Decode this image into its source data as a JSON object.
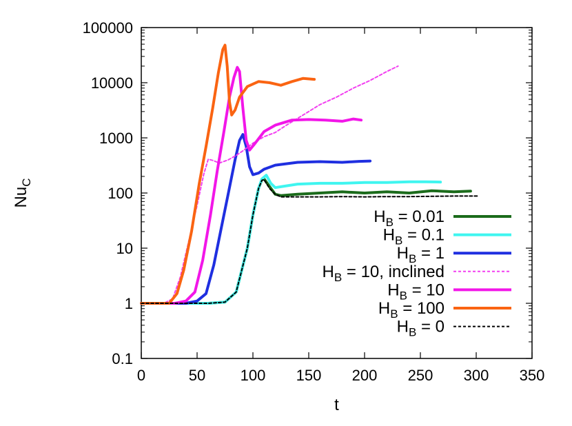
{
  "chart_data": {
    "type": "line",
    "xlabel": "t",
    "ylabel": {
      "main": "Nu",
      "sub": "C"
    },
    "xlim": [
      0,
      350
    ],
    "ylim": [
      0.1,
      100000
    ],
    "y_scale": "log",
    "grid": false,
    "legend_position": "right",
    "xticks": [
      0,
      50,
      100,
      150,
      200,
      250,
      300,
      350
    ],
    "yticks": [
      0.1,
      1,
      10,
      100,
      1000,
      10000,
      100000
    ],
    "ytick_labels": [
      "0.1",
      "1",
      "10",
      "100",
      "1000",
      "10000",
      "100000"
    ],
    "series": [
      {
        "name": "H_B = 0.01",
        "label": {
          "main": "H",
          "sub": "B",
          "rest": " = 0.01"
        },
        "color": "#1b6b1b",
        "dash": false,
        "points": [
          [
            0,
            1
          ],
          [
            60,
            1
          ],
          [
            75,
            1.05
          ],
          [
            85,
            1.6
          ],
          [
            95,
            10
          ],
          [
            100,
            40
          ],
          [
            105,
            120
          ],
          [
            108,
            175
          ],
          [
            110,
            180
          ],
          [
            115,
            130
          ],
          [
            120,
            95
          ],
          [
            125,
            90
          ],
          [
            140,
            95
          ],
          [
            160,
            100
          ],
          [
            180,
            105
          ],
          [
            200,
            100
          ],
          [
            220,
            105
          ],
          [
            240,
            100
          ],
          [
            260,
            110
          ],
          [
            280,
            105
          ],
          [
            295,
            108
          ]
        ]
      },
      {
        "name": "H_B = 0.1",
        "label": {
          "main": "H",
          "sub": "B",
          "rest": " = 0.1"
        },
        "color": "#3ff5f0",
        "dash": false,
        "points": [
          [
            0,
            1
          ],
          [
            60,
            1
          ],
          [
            75,
            1.05
          ],
          [
            85,
            1.6
          ],
          [
            95,
            10
          ],
          [
            100,
            40
          ],
          [
            105,
            120
          ],
          [
            108,
            180
          ],
          [
            112,
            210
          ],
          [
            116,
            150
          ],
          [
            120,
            125
          ],
          [
            125,
            130
          ],
          [
            140,
            145
          ],
          [
            160,
            150
          ],
          [
            180,
            150
          ],
          [
            200,
            155
          ],
          [
            220,
            155
          ],
          [
            240,
            160
          ],
          [
            255,
            160
          ],
          [
            268,
            158
          ]
        ]
      },
      {
        "name": "H_B = 1",
        "label": {
          "main": "H",
          "sub": "B",
          "rest": " = 1"
        },
        "color": "#1f2fe0",
        "dash": false,
        "points": [
          [
            0,
            1
          ],
          [
            40,
            1
          ],
          [
            50,
            1.1
          ],
          [
            58,
            1.5
          ],
          [
            65,
            5
          ],
          [
            72,
            25
          ],
          [
            78,
            100
          ],
          [
            84,
            400
          ],
          [
            88,
            900
          ],
          [
            91,
            1150
          ],
          [
            94,
            700
          ],
          [
            97,
            300
          ],
          [
            100,
            215
          ],
          [
            105,
            230
          ],
          [
            110,
            270
          ],
          [
            120,
            320
          ],
          [
            140,
            360
          ],
          [
            160,
            370
          ],
          [
            180,
            360
          ],
          [
            195,
            375
          ],
          [
            205,
            380
          ]
        ]
      },
      {
        "name": "H_B = 10, inclined",
        "label": {
          "main": "H",
          "sub": "B",
          "rest": " = 10, inclined"
        },
        "color": "#f23ff0",
        "dash": true,
        "points": [
          [
            0,
            1
          ],
          [
            20,
            1
          ],
          [
            28,
            1.2
          ],
          [
            35,
            3
          ],
          [
            42,
            12
          ],
          [
            50,
            60
          ],
          [
            56,
            220
          ],
          [
            60,
            410
          ],
          [
            64,
            390
          ],
          [
            70,
            350
          ],
          [
            78,
            400
          ],
          [
            85,
            480
          ],
          [
            92,
            600
          ],
          [
            100,
            800
          ],
          [
            110,
            1050
          ],
          [
            120,
            1250
          ],
          [
            130,
            1700
          ],
          [
            145,
            2600
          ],
          [
            160,
            4000
          ],
          [
            175,
            5500
          ],
          [
            190,
            8000
          ],
          [
            205,
            11000
          ],
          [
            220,
            16000
          ],
          [
            230,
            20000
          ]
        ]
      },
      {
        "name": "H_B = 10",
        "label": {
          "main": "H",
          "sub": "B",
          "rest": " = 10"
        },
        "color": "#f216e8",
        "dash": false,
        "points": [
          [
            0,
            1
          ],
          [
            30,
            1
          ],
          [
            40,
            1.1
          ],
          [
            48,
            1.6
          ],
          [
            55,
            6
          ],
          [
            62,
            40
          ],
          [
            68,
            250
          ],
          [
            74,
            1300
          ],
          [
            79,
            5500
          ],
          [
            83,
            12500
          ],
          [
            86,
            19000
          ],
          [
            88,
            16000
          ],
          [
            91,
            3500
          ],
          [
            94,
            900
          ],
          [
            97,
            600
          ],
          [
            102,
            800
          ],
          [
            110,
            1300
          ],
          [
            120,
            1700
          ],
          [
            135,
            2100
          ],
          [
            150,
            2150
          ],
          [
            165,
            2100
          ],
          [
            180,
            2000
          ],
          [
            190,
            2200
          ],
          [
            197,
            2100
          ]
        ]
      },
      {
        "name": "H_B = 100",
        "label": {
          "main": "H",
          "sub": "B",
          "rest": " = 100"
        },
        "color": "#fa6412",
        "dash": false,
        "points": [
          [
            0,
            1
          ],
          [
            25,
            1
          ],
          [
            32,
            1.5
          ],
          [
            38,
            4
          ],
          [
            45,
            20
          ],
          [
            52,
            150
          ],
          [
            58,
            700
          ],
          [
            64,
            3500
          ],
          [
            69,
            15000
          ],
          [
            73,
            40000
          ],
          [
            75,
            48000
          ],
          [
            77,
            20000
          ],
          [
            79,
            4500
          ],
          [
            81,
            2600
          ],
          [
            84,
            3200
          ],
          [
            88,
            5500
          ],
          [
            95,
            8500
          ],
          [
            105,
            10500
          ],
          [
            115,
            10000
          ],
          [
            125,
            9000
          ],
          [
            135,
            10500
          ],
          [
            145,
            12000
          ],
          [
            155,
            11500
          ]
        ]
      },
      {
        "name": "H_B = 0",
        "label": {
          "main": "H",
          "sub": "B",
          "rest": " = 0"
        },
        "color": "#000000",
        "dash": true,
        "points": [
          [
            0,
            1
          ],
          [
            60,
            1
          ],
          [
            75,
            1.05
          ],
          [
            85,
            1.6
          ],
          [
            95,
            10
          ],
          [
            100,
            40
          ],
          [
            105,
            120
          ],
          [
            108,
            170
          ],
          [
            110,
            175
          ],
          [
            115,
            120
          ],
          [
            120,
            95
          ],
          [
            125,
            85
          ],
          [
            140,
            85
          ],
          [
            160,
            85
          ],
          [
            180,
            86
          ],
          [
            200,
            85
          ],
          [
            220,
            86
          ],
          [
            240,
            86
          ],
          [
            260,
            87
          ],
          [
            280,
            88
          ],
          [
            302,
            88
          ]
        ]
      }
    ]
  }
}
